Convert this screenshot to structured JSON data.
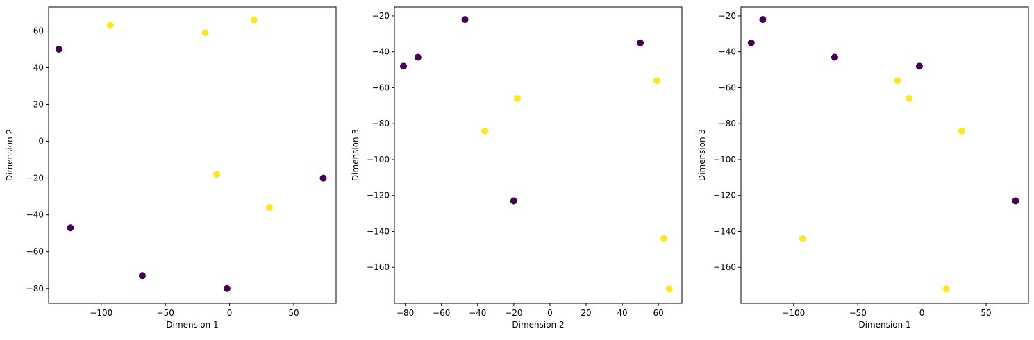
{
  "colors": {
    "class_0": "#440154",
    "class_1": "#fde725"
  },
  "chart_data": [
    {
      "type": "scatter",
      "xlabel": "Dimension 1",
      "ylabel": "Dimension 2",
      "xlim": [
        -141,
        83
      ],
      "ylim": [
        -88,
        73
      ],
      "xticks": [
        -100,
        -50,
        0,
        50
      ],
      "yticks": [
        -80,
        -60,
        -40,
        -20,
        0,
        20,
        40,
        60
      ],
      "grid": false,
      "points": [
        {
          "x": -133,
          "y": 50,
          "class": 0
        },
        {
          "x": -124,
          "y": -47,
          "class": 0
        },
        {
          "x": -68,
          "y": -73,
          "class": 0
        },
        {
          "x": -2,
          "y": -80,
          "class": 0
        },
        {
          "x": 73,
          "y": -20,
          "class": 0
        },
        {
          "x": -93,
          "y": 63,
          "class": 1
        },
        {
          "x": -19,
          "y": 59,
          "class": 1
        },
        {
          "x": 19,
          "y": 66,
          "class": 1
        },
        {
          "x": -10,
          "y": -18,
          "class": 1
        },
        {
          "x": 31,
          "y": -36,
          "class": 1
        }
      ]
    },
    {
      "type": "scatter",
      "xlabel": "Dimension 2",
      "ylabel": "Dimension 3",
      "xlim": [
        -86,
        73
      ],
      "ylim": [
        -180,
        -15
      ],
      "xticks": [
        -80,
        -60,
        -40,
        -20,
        0,
        20,
        40,
        60
      ],
      "yticks": [
        -160,
        -140,
        -120,
        -100,
        -80,
        -60,
        -40,
        -20
      ],
      "grid": false,
      "points": [
        {
          "x": -81,
          "y": -48,
          "class": 0
        },
        {
          "x": -73,
          "y": -43,
          "class": 0
        },
        {
          "x": -47,
          "y": -22,
          "class": 0
        },
        {
          "x": -20,
          "y": -123,
          "class": 0
        },
        {
          "x": 50,
          "y": -35,
          "class": 0
        },
        {
          "x": -36,
          "y": -84,
          "class": 1
        },
        {
          "x": -18,
          "y": -66,
          "class": 1
        },
        {
          "x": 59,
          "y": -56,
          "class": 1
        },
        {
          "x": 63,
          "y": -144,
          "class": 1
        },
        {
          "x": 66,
          "y": -172,
          "class": 1
        }
      ]
    },
    {
      "type": "scatter",
      "xlabel": "Dimension 1",
      "ylabel": "Dimension 3",
      "xlim": [
        -141,
        83
      ],
      "ylim": [
        -180,
        -15
      ],
      "xticks": [
        -100,
        -50,
        0,
        50
      ],
      "yticks": [
        -160,
        -140,
        -120,
        -100,
        -80,
        -60,
        -40,
        -20
      ],
      "grid": false,
      "points": [
        {
          "x": -133,
          "y": -35,
          "class": 0
        },
        {
          "x": -124,
          "y": -22,
          "class": 0
        },
        {
          "x": -68,
          "y": -43,
          "class": 0
        },
        {
          "x": -2,
          "y": -48,
          "class": 0
        },
        {
          "x": 73,
          "y": -123,
          "class": 0
        },
        {
          "x": -19,
          "y": -56,
          "class": 1
        },
        {
          "x": -10,
          "y": -66,
          "class": 1
        },
        {
          "x": 31,
          "y": -84,
          "class": 1
        },
        {
          "x": -93,
          "y": -144,
          "class": 1
        },
        {
          "x": 19,
          "y": -172,
          "class": 1
        }
      ]
    }
  ]
}
